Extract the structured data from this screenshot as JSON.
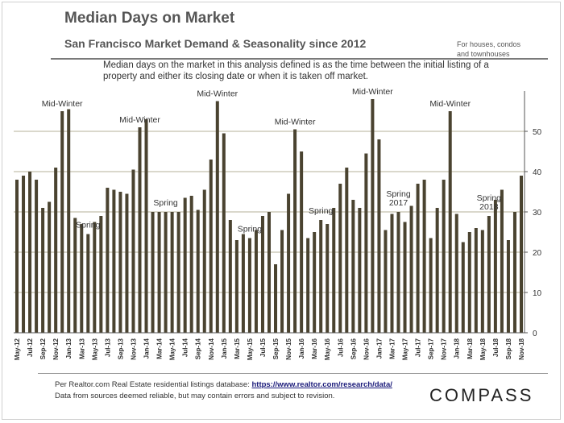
{
  "header": {
    "title": "Median Days on Market",
    "subtitle": "San Francisco Market Demand & Seasonality since 2012",
    "note_line1": "For houses, condos",
    "note_line2": "and townhouses",
    "description": "Median days on the market in this analysis defined is as the time between the initial listing of a property and either its closing date or when it is taken off market."
  },
  "footer": {
    "source_prefix": "Per Realtor.com Real Estate residential listings database: ",
    "source_link": "https://www.realtor.com/research/data/",
    "disclaimer": "Data from sources deemed reliable, but may contain errors and subject to revision.",
    "brand": "COMPASS"
  },
  "colors": {
    "bar": "#4a4330",
    "gridline": "#b5b09a",
    "axis": "#555555"
  },
  "chart_data": {
    "type": "bar",
    "title": "Median Days on Market",
    "ylim": [
      0,
      60
    ],
    "yticks": [
      0,
      10,
      20,
      30,
      40,
      50
    ],
    "grid": true,
    "tick_labels": [
      "May-12",
      "Jul-12",
      "Sep-12",
      "Nov-12",
      "Jan-13",
      "Mar-13",
      "May-13",
      "Jul-13",
      "Sep-13",
      "Nov-13",
      "Jan-14",
      "Mar-14",
      "May-14",
      "Jul-14",
      "Sep-14",
      "Nov-14",
      "Jan-15",
      "Mar-15",
      "May-15",
      "Jul-15",
      "Sep-15",
      "Nov-15",
      "Jan-16",
      "Mar-16",
      "May-16",
      "Jul-16",
      "Sep-16",
      "Nov-16",
      "Jan-17",
      "Mar-17",
      "May-17",
      "Jul-17",
      "Sep-17",
      "Nov-17",
      "Jan-18",
      "Mar-18",
      "May-18",
      "Jul-18",
      "Sep-18",
      "Nov-18"
    ],
    "values": [
      38,
      39,
      40,
      38,
      31,
      32.5,
      41,
      55,
      55.5,
      28.5,
      27,
      24.5,
      27.5,
      29,
      36,
      35.5,
      35,
      34.5,
      40.5,
      51,
      53,
      30,
      30,
      30,
      30,
      30,
      33.5,
      34,
      30.5,
      35.5,
      43,
      57.5,
      49.5,
      28,
      23,
      24.5,
      23.5,
      25.5,
      29,
      30,
      17,
      25.5,
      34.5,
      50.5,
      45,
      23.5,
      25,
      28,
      27,
      31,
      37,
      41,
      33,
      31,
      44.5,
      58,
      48,
      25.5,
      29.5,
      30,
      27.5,
      31.5,
      37,
      38,
      23.5,
      31,
      38,
      55,
      29.5,
      22.5,
      25,
      26,
      25.5,
      29,
      33,
      35.5,
      23,
      30,
      39
    ],
    "annotations": [
      {
        "text": "Mid-Winter",
        "index": 7
      },
      {
        "text": "Spring",
        "index": 11
      },
      {
        "text": "Mid-Winter",
        "index": 19
      },
      {
        "text": "Spring",
        "index": 23
      },
      {
        "text": "Mid-Winter",
        "index": 31
      },
      {
        "text": "Spring",
        "index": 36
      },
      {
        "text": "Mid-Winter",
        "index": 43
      },
      {
        "text": "Spring",
        "index": 47
      },
      {
        "text": "Mid-Winter",
        "index": 55
      },
      {
        "text": "Spring",
        "index": 59,
        "line2": "2017"
      },
      {
        "text": "Mid-Winter",
        "index": 67
      },
      {
        "text": "Spring",
        "index": 73,
        "line2": "2018"
      }
    ]
  }
}
